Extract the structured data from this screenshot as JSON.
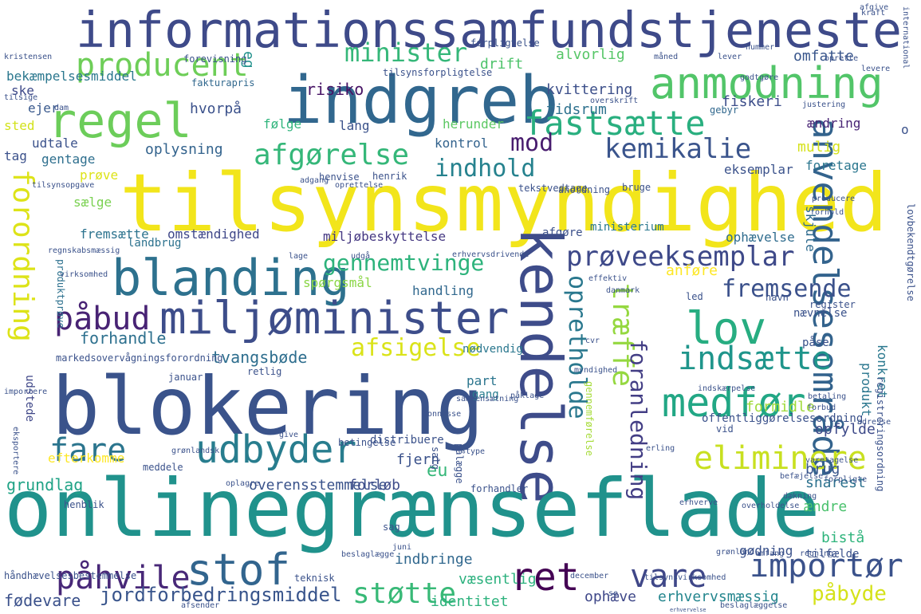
{
  "words": [
    {
      "text": "informationssamfundstjeneste",
      "color": "#3e4a89"
    },
    {
      "text": "indgreb",
      "color": "#31678e"
    },
    {
      "text": "tilsynsmyndighed",
      "color": "#f2e51b"
    },
    {
      "text": "kendelse",
      "color": "#3e4c8a"
    },
    {
      "text": "blokering",
      "color": "#3a538b"
    },
    {
      "text": "onlinegrænseflade",
      "color": "#20928c"
    },
    {
      "text": "regel",
      "color": "#6ccd5a"
    },
    {
      "text": "anmodning",
      "color": "#52c569"
    },
    {
      "text": "blanding",
      "color": "#2d718e"
    },
    {
      "text": "miljøminister",
      "color": "#3d4d8a"
    },
    {
      "text": "lov",
      "color": "#27ad81"
    },
    {
      "text": "producent",
      "color": "#6ece58"
    },
    {
      "text": "fastsætte",
      "color": "#29af7f"
    },
    {
      "text": "minister",
      "color": "#35b779"
    },
    {
      "text": "kemikalie",
      "color": "#3a548c"
    },
    {
      "text": "afgørelse",
      "color": "#35b779"
    },
    {
      "text": "mod",
      "color": "#481c6e"
    },
    {
      "text": "indhold",
      "color": "#26828e"
    },
    {
      "text": "anvendelsesområde",
      "color": "#33638d"
    },
    {
      "text": "prøveeksemplar",
      "color": "#3e4989"
    },
    {
      "text": "gennemtvinge",
      "color": "#2eb37c"
    },
    {
      "text": "påbud",
      "color": "#482374"
    },
    {
      "text": "opretholde",
      "color": "#2a788e"
    },
    {
      "text": "træffe",
      "color": "#95d840"
    },
    {
      "text": "fremsende",
      "color": "#3b518b"
    },
    {
      "text": "indsætte",
      "color": "#1f958b"
    },
    {
      "text": "medfør",
      "color": "#22a785"
    },
    {
      "text": "afsigelse",
      "color": "#dae319"
    },
    {
      "text": "foranledning",
      "color": "#433e85"
    },
    {
      "text": "eliminere",
      "color": "#c8e020"
    },
    {
      "text": "fare",
      "color": "#2b758e"
    },
    {
      "text": "udbyder",
      "color": "#287d8e"
    },
    {
      "text": "forordning",
      "color": "#dde318"
    },
    {
      "text": "stof",
      "color": "#32658e"
    },
    {
      "text": "påhvile",
      "color": "#482878"
    },
    {
      "text": "ret",
      "color": "#440154"
    },
    {
      "text": "vare",
      "color": "#3f4788"
    },
    {
      "text": "importør",
      "color": "#3b528b"
    },
    {
      "text": "støtte",
      "color": "#38b977"
    },
    {
      "text": "påbyde",
      "color": "#d5e21a"
    },
    {
      "text": "eu",
      "color": "#35b779"
    },
    {
      "text": "jordforbedringsmiddel",
      "color": "#39558c"
    },
    {
      "text": "fødevare",
      "color": "#3b518b"
    },
    {
      "text": "identitet",
      "color": "#2db27d"
    },
    {
      "text": "erhvervsmæssig",
      "color": "#24868e"
    },
    {
      "text": "grundlag",
      "color": "#20a386"
    },
    {
      "text": "overensstemmelse",
      "color": "#3a538b"
    },
    {
      "text": "efterkomme",
      "color": "#fde725"
    },
    {
      "text": "fjern",
      "color": "#3b528b"
    },
    {
      "text": "forløb",
      "color": "#3e4c8a"
    },
    {
      "text": "forhandle",
      "color": "#2d708e"
    },
    {
      "text": "tvangsbøde",
      "color": "#2e6e8e"
    },
    {
      "text": "spørgsmål",
      "color": "#8bd646"
    },
    {
      "text": "handling",
      "color": "#31688e"
    },
    {
      "text": "miljøbeskyttelse",
      "color": "#453882"
    },
    {
      "text": "omstændighed",
      "color": "#3f4788"
    },
    {
      "text": "fremsætte",
      "color": "#2c738e"
    },
    {
      "text": "landbrug",
      "color": "#2c728e"
    },
    {
      "text": "afgøre",
      "color": "#3c508b"
    },
    {
      "text": "ophævelse",
      "color": "#2f6c8e"
    },
    {
      "text": "anføre",
      "color": "#fde725"
    },
    {
      "text": "formidle",
      "color": "#a0da39"
    },
    {
      "text": "gennemførelse",
      "color": "#a5db36"
    },
    {
      "text": "produkt",
      "color": "#2a768e"
    },
    {
      "text": "konkret",
      "color": "#2a788e"
    },
    {
      "text": "snarest",
      "color": "#2c718e"
    },
    {
      "text": "opfylde",
      "color": "#3e4a89"
    },
    {
      "text": "brug",
      "color": "#39568c"
    },
    {
      "text": "ændre",
      "color": "#4ac16d"
    },
    {
      "text": "bistå",
      "color": "#2fb47c"
    },
    {
      "text": "gødning",
      "color": "#3b528b"
    },
    {
      "text": "indbringe",
      "color": "#31688e"
    },
    {
      "text": "væsentlig",
      "color": "#2cb17e"
    },
    {
      "text": "ophæve",
      "color": "#3f4889"
    },
    {
      "text": "ministerium",
      "color": "#2a788e"
    },
    {
      "text": "omfatte",
      "color": "#39568c"
    },
    {
      "text": "drift",
      "color": "#4ec36b"
    },
    {
      "text": "kvittering",
      "color": "#3c4f8a"
    },
    {
      "text": "alvorlig",
      "color": "#56c667"
    },
    {
      "text": "tidsrum",
      "color": "#2d718e"
    },
    {
      "text": "fiskeri",
      "color": "#3d4e8a"
    },
    {
      "text": "risiko",
      "color": "#471365"
    },
    {
      "text": "hvorpå",
      "color": "#3b518b"
    },
    {
      "text": "følge",
      "color": "#2fb47c"
    },
    {
      "text": "lang",
      "color": "#3b528b"
    },
    {
      "text": "herunder",
      "color": "#5cc863"
    },
    {
      "text": "kontrol",
      "color": "#33638d"
    },
    {
      "text": "oplysning",
      "color": "#33638d"
    },
    {
      "text": "udtale",
      "color": "#3b528b"
    },
    {
      "text": "gentage",
      "color": "#2e6f8e"
    },
    {
      "text": "prøve",
      "color": "#dde318"
    },
    {
      "text": "sælge",
      "color": "#7ad151"
    },
    {
      "text": "sted",
      "color": "#d2e21b"
    },
    {
      "text": "tag",
      "color": "#3b518b"
    },
    {
      "text": "ske",
      "color": "#3e4989"
    },
    {
      "text": "ejer",
      "color": "#38588c"
    },
    {
      "text": "bekæmpelsesmiddel",
      "color": "#2a778e"
    },
    {
      "text": "eg",
      "color": "#21918c"
    },
    {
      "text": "mulig",
      "color": "#d5e21a"
    },
    {
      "text": "foretage",
      "color": "#2a768e"
    },
    {
      "text": "eksemplar",
      "color": "#3b528b"
    },
    {
      "text": "ændring",
      "color": "#482475"
    },
    {
      "text": "gebyr",
      "color": "#31688e"
    },
    {
      "text": "o",
      "color": "#3b528b"
    },
    {
      "text": "skjule",
      "color": "#2f6b8e"
    },
    {
      "text": "part",
      "color": "#2b758e"
    },
    {
      "text": "gang",
      "color": "#287d8e"
    },
    {
      "text": "nødvendig",
      "color": "#2a778e"
    },
    {
      "text": "forhandler",
      "color": "#3b528b"
    },
    {
      "text": "udstede",
      "color": "#3f4788"
    },
    {
      "text": "markedsovervågningsforordning",
      "color": "#3b528b"
    },
    {
      "text": "produktprøve",
      "color": "#2d718e"
    },
    {
      "text": "fakturapris",
      "color": "#31688e"
    },
    {
      "text": "tilsynsforpligtelse",
      "color": "#3b528b"
    },
    {
      "text": "forpligtelse",
      "color": "#3b528b"
    },
    {
      "text": "forevisning",
      "color": "#3b528b"
    },
    {
      "text": "tekstvedtage",
      "color": "#3b528b"
    },
    {
      "text": "henvise",
      "color": "#3b528b"
    },
    {
      "text": "bruge",
      "color": "#3b528b"
    },
    {
      "text": "henrik",
      "color": "#3b528b"
    },
    {
      "text": "anordning",
      "color": "#3b528b"
    },
    {
      "text": "tilsynsopgave",
      "color": "#3b528b"
    },
    {
      "text": "effektiv",
      "color": "#3b528b"
    },
    {
      "text": "register",
      "color": "#3b528b"
    },
    {
      "text": "påse",
      "color": "#3b528b"
    },
    {
      "text": "nævnelse",
      "color": "#3b528b"
    },
    {
      "text": "navn",
      "color": "#3b528b"
    },
    {
      "text": "led",
      "color": "#3b528b"
    },
    {
      "text": "registreringsordning",
      "color": "#3b528b"
    },
    {
      "text": "lovbekendtgørelse",
      "color": "#3b528b"
    },
    {
      "text": "forhold",
      "color": "#3b528b"
    },
    {
      "text": "producere",
      "color": "#3b528b"
    },
    {
      "text": "indskærpelse",
      "color": "#3b528b"
    },
    {
      "text": "betaling",
      "color": "#3b528b"
    },
    {
      "text": "forbud",
      "color": "#3b528b"
    },
    {
      "text": "adresse",
      "color": "#3b528b"
    },
    {
      "text": "offentliggørelsesordning",
      "color": "#3b528b"
    },
    {
      "text": "vid",
      "color": "#3b528b"
    },
    {
      "text": "påklage",
      "color": "#3b528b"
    },
    {
      "text": "sammensætning",
      "color": "#3b528b"
    },
    {
      "text": "bonnesse",
      "color": "#3b528b"
    },
    {
      "text": "give",
      "color": "#3b528b"
    },
    {
      "text": "distribuere",
      "color": "#3b528b"
    },
    {
      "text": "betingelse",
      "color": "#3b528b"
    },
    {
      "text": "pålægge",
      "color": "#3b528b"
    },
    {
      "text": "salg",
      "color": "#3b528b"
    },
    {
      "text": "type",
      "color": "#3b528b"
    },
    {
      "text": "erling",
      "color": "#3b528b"
    },
    {
      "text": "meddele",
      "color": "#3b528b"
    },
    {
      "text": "grønlandsk",
      "color": "#3b528b"
    },
    {
      "text": "oplagre",
      "color": "#3b528b"
    },
    {
      "text": "eksportere",
      "color": "#3b528b"
    },
    {
      "text": "importere",
      "color": "#3b528b"
    },
    {
      "text": "januar",
      "color": "#3b528b"
    },
    {
      "text": "retlig",
      "color": "#3b528b"
    },
    {
      "text": "henblik",
      "color": "#3b528b"
    },
    {
      "text": "håndhævelsesbestemmelse",
      "color": "#3b528b"
    },
    {
      "text": "sag",
      "color": "#3b528b"
    },
    {
      "text": "juni",
      "color": "#3b528b"
    },
    {
      "text": "tilfælde",
      "color": "#3b528b"
    },
    {
      "text": "grønland",
      "color": "#3b528b"
    },
    {
      "text": "omfang",
      "color": "#3b528b"
    },
    {
      "text": "regning",
      "color": "#3b528b"
    },
    {
      "text": "beslaglægge",
      "color": "#3b528b"
    },
    {
      "text": "teknisk",
      "color": "#3b528b"
    },
    {
      "text": "december",
      "color": "#3b528b"
    },
    {
      "text": "tilsynsvirksomhed",
      "color": "#3b528b"
    },
    {
      "text": "afsender",
      "color": "#3b528b"
    },
    {
      "text": "erhvervelse",
      "color": "#3b528b"
    },
    {
      "text": "se",
      "color": "#3b528b"
    },
    {
      "text": "beslaglæggelse",
      "color": "#3b528b"
    },
    {
      "text": "befæjelse",
      "color": "#3b528b"
    },
    {
      "text": "varetagelse",
      "color": "#3b528b"
    },
    {
      "text": "forpligte",
      "color": "#3b528b"
    },
    {
      "text": "dækning",
      "color": "#3b528b"
    },
    {
      "text": "erhverve",
      "color": "#3b528b"
    },
    {
      "text": "overholdelse",
      "color": "#3b528b"
    },
    {
      "text": "cvr",
      "color": "#3b528b"
    },
    {
      "text": "myndighed",
      "color": "#3b528b"
    },
    {
      "text": "danmark",
      "color": "#3b528b"
    },
    {
      "text": "erhvervsdrivende",
      "color": "#3b528b"
    },
    {
      "text": "udgå",
      "color": "#3b528b"
    },
    {
      "text": "lage",
      "color": "#3b528b"
    },
    {
      "text": "regnskabsmæssig",
      "color": "#3b528b"
    },
    {
      "text": "virksomhed",
      "color": "#3b528b"
    },
    {
      "text": "afgive",
      "color": "#3b528b"
    },
    {
      "text": "kraft",
      "color": "#3b528b"
    },
    {
      "text": "kristensen",
      "color": "#3b528b"
    },
    {
      "text": "international",
      "color": "#3b528b"
    },
    {
      "text": "nummer",
      "color": "#3b528b"
    },
    {
      "text": "måned",
      "color": "#3b528b"
    },
    {
      "text": "lever",
      "color": "#3b528b"
    },
    {
      "text": "oprette",
      "color": "#3b528b"
    },
    {
      "text": "levere",
      "color": "#3b528b"
    },
    {
      "text": "godtgøre",
      "color": "#3b528b"
    },
    {
      "text": "overskrift",
      "color": "#3b528b"
    },
    {
      "text": "justering",
      "color": "#3b528b"
    },
    {
      "text": "tilsige",
      "color": "#3b528b"
    },
    {
      "text": "dam",
      "color": "#3b528b"
    },
    {
      "text": "adgang",
      "color": "#3b528b"
    },
    {
      "text": "oprettelse",
      "color": "#3b528b"
    }
  ]
}
